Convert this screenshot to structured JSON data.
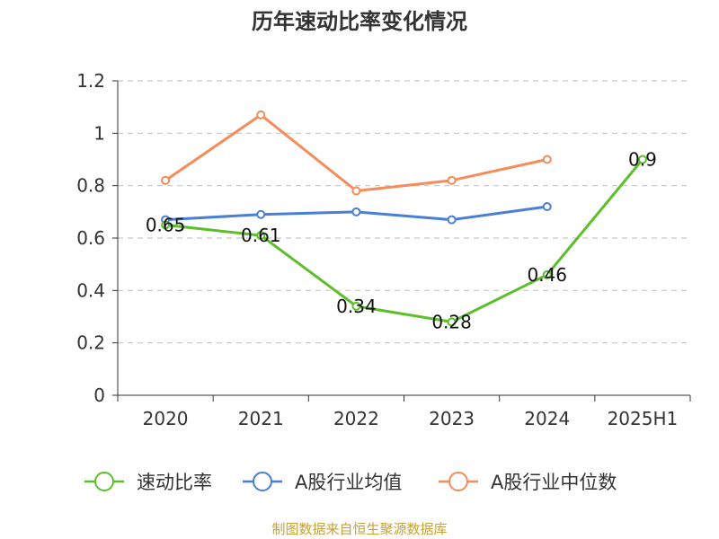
{
  "chart_data": {
    "type": "line",
    "title": "历年速动比率变化情况",
    "categories": [
      "2020",
      "2021",
      "2022",
      "2023",
      "2024",
      "2025H1"
    ],
    "ylim": [
      0,
      1.2
    ],
    "yticks": [
      "0",
      "0.2",
      "0.4",
      "0.6",
      "0.8",
      "1",
      "1.2"
    ],
    "grid": true,
    "legend_position": "bottom",
    "series": [
      {
        "name": "速动比率",
        "color": "#5cbf2a",
        "values": [
          0.65,
          0.61,
          0.34,
          0.28,
          0.46,
          0.9
        ],
        "labels": [
          "0.65",
          "0.61",
          "0.34",
          "0.28",
          "0.46",
          "0.9"
        ],
        "show_labels": true
      },
      {
        "name": "A股行业均值",
        "color": "#4a7fd8",
        "values": [
          0.67,
          0.69,
          0.7,
          0.67,
          0.72,
          null
        ],
        "show_labels": false
      },
      {
        "name": "A股行业中位数",
        "color": "#f58c5a",
        "values": [
          0.82,
          1.07,
          0.78,
          0.82,
          0.9,
          null
        ],
        "show_labels": false
      }
    ],
    "source": "制图数据来自恒生聚源数据库"
  }
}
